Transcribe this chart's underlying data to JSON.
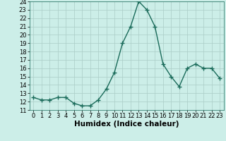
{
  "x": [
    0,
    1,
    2,
    3,
    4,
    5,
    6,
    7,
    8,
    9,
    10,
    11,
    12,
    13,
    14,
    15,
    16,
    17,
    18,
    19,
    20,
    21,
    22,
    23
  ],
  "y": [
    12.5,
    12.2,
    12.2,
    12.5,
    12.5,
    11.8,
    11.5,
    11.5,
    12.2,
    13.5,
    15.5,
    19.0,
    21.0,
    24.0,
    23.0,
    21.0,
    16.5,
    15.0,
    13.8,
    16.0,
    16.5,
    16.0,
    16.0,
    14.8
  ],
  "xlabel": "Humidex (Indice chaleur)",
  "ylabel": "",
  "ylim": [
    11,
    24
  ],
  "xlim": [
    -0.5,
    23.5
  ],
  "yticks": [
    11,
    12,
    13,
    14,
    15,
    16,
    17,
    18,
    19,
    20,
    21,
    22,
    23,
    24
  ],
  "xticks": [
    0,
    1,
    2,
    3,
    4,
    5,
    6,
    7,
    8,
    9,
    10,
    11,
    12,
    13,
    14,
    15,
    16,
    17,
    18,
    19,
    20,
    21,
    22,
    23
  ],
  "line_color": "#1a6b5a",
  "marker": "+",
  "marker_size": 4,
  "bg_color": "#cceee8",
  "grid_color": "#aaccc6",
  "font_size_axis": 7.5,
  "font_size_ticks": 6.0,
  "lw": 1.0
}
